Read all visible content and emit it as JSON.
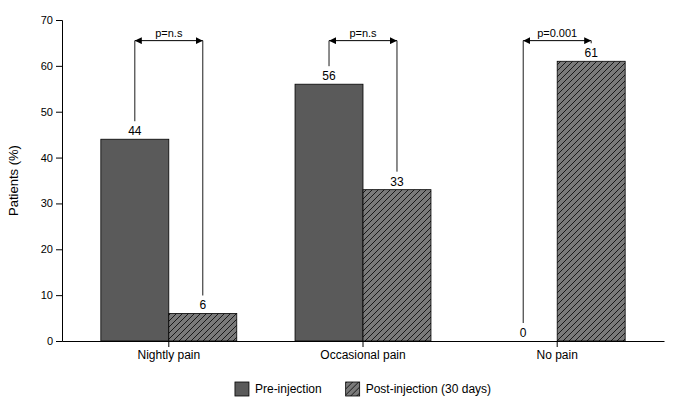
{
  "chart_data": {
    "type": "bar",
    "categories": [
      "Nightly pain",
      "Occasional pain",
      "No pain"
    ],
    "series": [
      {
        "name": "Pre-injection",
        "color": "#5a5a5a",
        "values": [
          44,
          56,
          0
        ]
      },
      {
        "name": "Post-injection (30 days)",
        "color": "#7a7a7a",
        "values": [
          6,
          33,
          61
        ]
      }
    ],
    "ylabel": "Patients (%)",
    "ylim": [
      0,
      70
    ],
    "yticks": [
      0,
      10,
      20,
      30,
      40,
      50,
      60,
      70
    ],
    "data_labels": true,
    "legend": "bottom",
    "annotations": [
      {
        "text": "p=n.s",
        "y": 65.5
      },
      {
        "text": "p=n.s",
        "y": 65.5
      },
      {
        "text": "p=0.001",
        "y": 65.5
      }
    ]
  }
}
